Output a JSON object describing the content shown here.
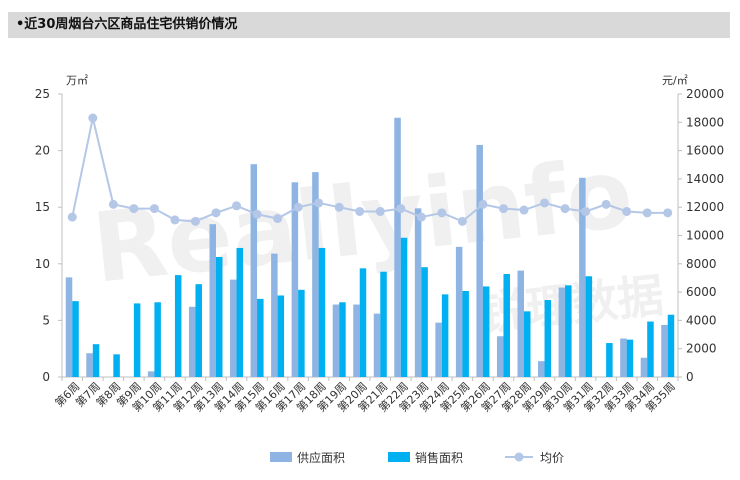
{
  "title": "•近30周烟台六区商品住宅供销价情况",
  "watermark": {
    "text": "Reallyinfo",
    "cn": "锐理数据"
  },
  "chart_data": {
    "type": "bar",
    "title": "•近30周烟台六区商品住宅供销价情况",
    "ylabel_left": "万㎡",
    "ylabel_right": "元/㎡",
    "ylim_left": [
      0,
      25
    ],
    "ylim_right": [
      0,
      20000
    ],
    "yticks_left": [
      "0",
      "5",
      "10",
      "15",
      "20",
      "25"
    ],
    "yticks_right": [
      "0",
      "2000",
      "4000",
      "6000",
      "8000",
      "10000",
      "12000",
      "14000",
      "16000",
      "18000",
      "20000"
    ],
    "grid": false,
    "legend_position": "bottom",
    "categories": [
      "第6周",
      "第7周",
      "第8周",
      "第9周",
      "第10周",
      "第11周",
      "第12周",
      "第13周",
      "第14周",
      "第15周",
      "第16周",
      "第17周",
      "第18周",
      "第19周",
      "第20周",
      "第21周",
      "第22周",
      "第23周",
      "第24周",
      "第25周",
      "第26周",
      "第27周",
      "第28周",
      "第29周",
      "第30周",
      "第31周",
      "第32周",
      "第33周",
      "第34周",
      "第35周"
    ],
    "series": [
      {
        "name": "供应面积",
        "type": "bar",
        "axis": "left",
        "color": "#8eb4e3",
        "values": [
          8.8,
          2.1,
          0,
          0,
          0.5,
          0,
          6.2,
          13.5,
          8.6,
          18.8,
          10.9,
          17.2,
          18.1,
          6.4,
          6.4,
          5.6,
          22.9,
          14.9,
          4.8,
          11.5,
          20.5,
          3.6,
          9.4,
          1.4,
          7.9,
          17.6,
          0,
          3.4,
          1.7,
          4.6
        ]
      },
      {
        "name": "销售面积",
        "type": "bar",
        "axis": "left",
        "color": "#00b0f0",
        "values": [
          6.7,
          2.9,
          2.0,
          6.5,
          6.6,
          9.0,
          8.2,
          10.6,
          11.4,
          6.9,
          7.2,
          7.7,
          11.4,
          6.6,
          9.6,
          9.3,
          12.3,
          9.7,
          7.3,
          7.6,
          8.0,
          9.1,
          5.8,
          6.8,
          8.1,
          8.9,
          3.0,
          3.3,
          4.9,
          5.5
        ]
      },
      {
        "name": "均价",
        "type": "line",
        "axis": "right",
        "color": "#b4c7e7",
        "values": [
          11300,
          18300,
          12200,
          11900,
          11900,
          11100,
          11000,
          11600,
          12100,
          11500,
          11200,
          12000,
          12300,
          12000,
          11700,
          11700,
          11900,
          11300,
          11600,
          11000,
          12200,
          11900,
          11800,
          12300,
          11900,
          11700,
          12200,
          11700,
          11600,
          11600
        ]
      }
    ]
  }
}
